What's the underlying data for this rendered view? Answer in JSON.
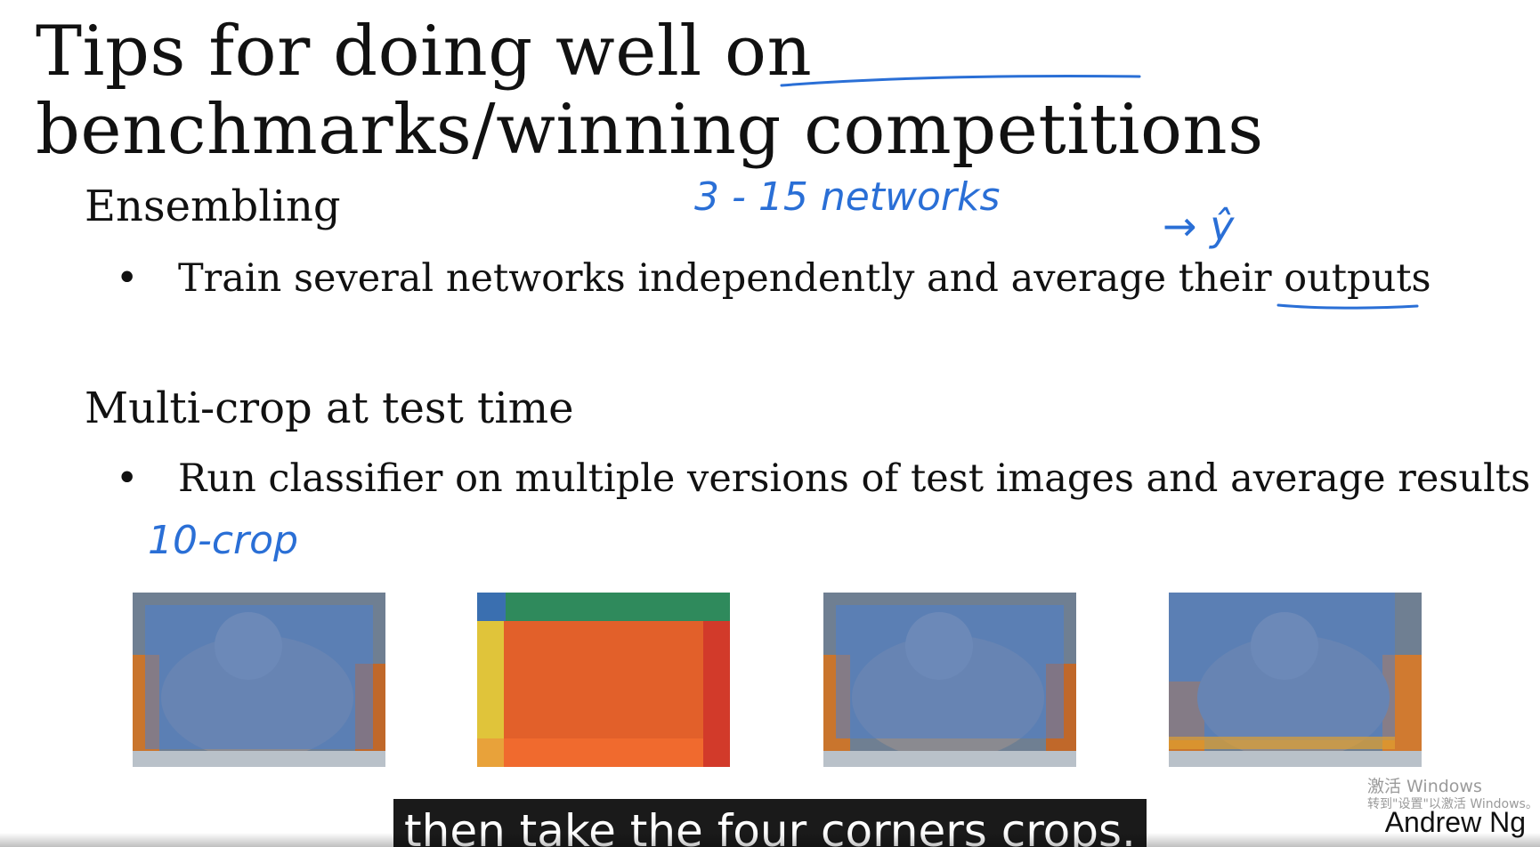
{
  "slide": {
    "title": "Tips for doing well on benchmarks/winning competitions",
    "sections": [
      {
        "heading": "Ensembling",
        "bullet": "Train several networks independently and average their outputs"
      },
      {
        "heading": "Multi-crop at test time",
        "bullet": "Run classifier on multiple versions of test images and average results"
      }
    ],
    "handwritten": {
      "networks_note": "3 - 15   networks",
      "y_hat": "→ ŷ",
      "ten_crop": "10-crop"
    },
    "author": "Andrew Ng"
  },
  "subtitle": {
    "text": "then take the four corners crops."
  },
  "watermark": {
    "line1": "激活 Windows",
    "line2": "转到\"设置\"以激活 Windows。"
  },
  "crops": {
    "colors": {
      "blue_overlay": "#4a7fd0",
      "green": "#2f8a5c",
      "orange": "#e2602a",
      "yellow": "#e0c43a",
      "red": "#d23a2a",
      "fur": "#8a8a90"
    },
    "labels": [
      "cat-image-crop-1",
      "color-crop-diagram",
      "cat-image-crop-2",
      "cat-image-crop-3"
    ]
  }
}
